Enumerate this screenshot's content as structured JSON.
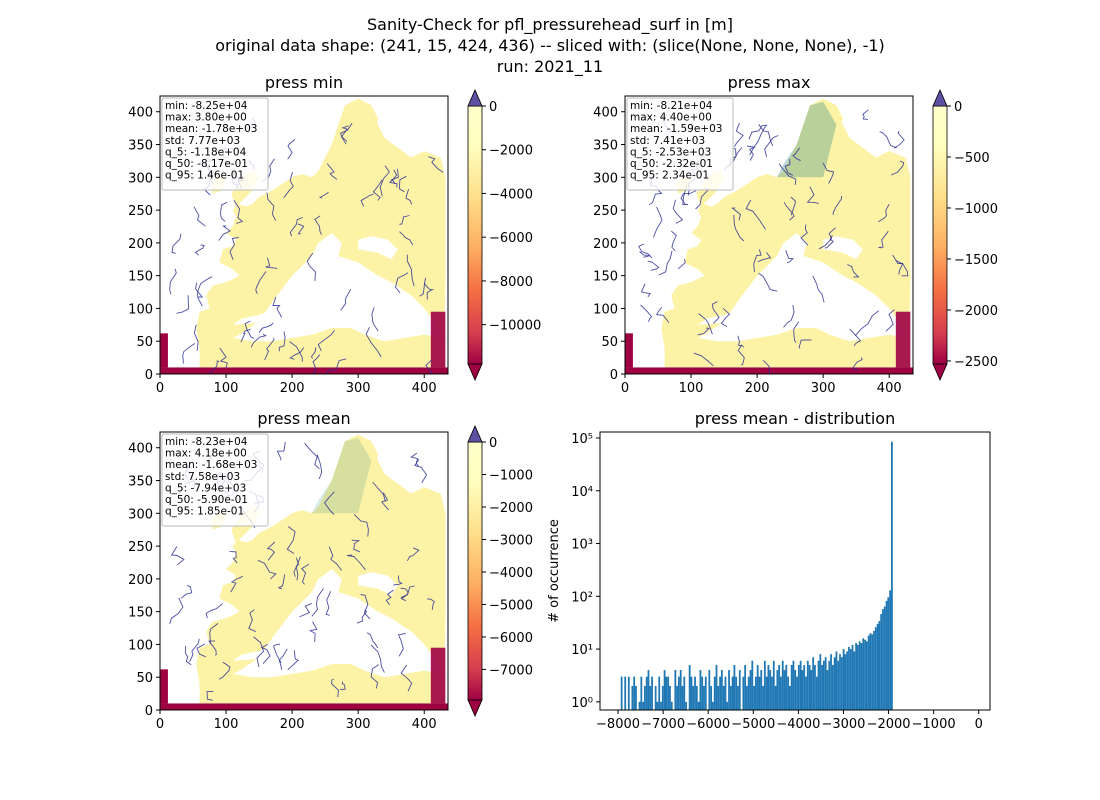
{
  "figure": {
    "title_lines": [
      "Sanity-Check for pfl_pressurehead_surf in [m]",
      "original data shape: (241, 15, 424, 436) -- sliced with: (slice(None, None, None), -1)",
      "run: 2021_11"
    ]
  },
  "colors": {
    "map_fill": "#fdf3a6",
    "map_dry": "#9e0142",
    "river": "#2b2f94",
    "forest_tone": "#3a8f86",
    "histogram_bar": "#1f77b4",
    "over_color": "#5e4fa2"
  },
  "chart_data": [
    {
      "type": "heatmap",
      "title": "press min",
      "xlim": [
        0,
        436
      ],
      "ylim": [
        0,
        424
      ],
      "x_ticks": [
        "0",
        "100",
        "200",
        "300",
        "400"
      ],
      "y_ticks": [
        "0",
        "50",
        "100",
        "150",
        "200",
        "250",
        "300",
        "350",
        "400"
      ],
      "stats": [
        "min: -8.25e+04",
        "max: 3.80e+00",
        "mean: -1.78e+03",
        "std: 7.77e+03",
        "q_5: -1.18e+04",
        "q_50: -8.17e-01",
        "q_95: 1.46e-01"
      ],
      "colorbar": {
        "range": [
          -11800,
          0
        ],
        "ticks": [
          "0",
          "−2000",
          "−4000",
          "−6000",
          "−8000",
          "−10000"
        ],
        "tick_values": [
          0,
          -2000,
          -4000,
          -6000,
          -8000,
          -10000
        ],
        "colormap": "Spectral",
        "extend": "both"
      }
    },
    {
      "type": "heatmap",
      "title": "press max",
      "xlim": [
        0,
        436
      ],
      "ylim": [
        0,
        424
      ],
      "x_ticks": [
        "0",
        "100",
        "200",
        "300",
        "400"
      ],
      "y_ticks": [
        "0",
        "50",
        "100",
        "150",
        "200",
        "250",
        "300",
        "350",
        "400"
      ],
      "stats": [
        "min: -8.21e+04",
        "max: 4.40e+00",
        "mean: -1.59e+03",
        "std: 7.41e+03",
        "q_5: -2.53e+03",
        "q_50: -2.32e-01",
        "q_95: 2.34e-01"
      ],
      "colorbar": {
        "range": [
          -2530,
          0
        ],
        "ticks": [
          "0",
          "−500",
          "−1000",
          "−1500",
          "−2000",
          "−2500"
        ],
        "tick_values": [
          0,
          -500,
          -1000,
          -1500,
          -2000,
          -2500
        ],
        "colormap": "Spectral",
        "extend": "both"
      }
    },
    {
      "type": "heatmap",
      "title": "press mean",
      "xlim": [
        0,
        436
      ],
      "ylim": [
        0,
        424
      ],
      "x_ticks": [
        "0",
        "100",
        "200",
        "300",
        "400"
      ],
      "y_ticks": [
        "0",
        "50",
        "100",
        "150",
        "200",
        "250",
        "300",
        "350",
        "400"
      ],
      "stats": [
        "min: -8.23e+04",
        "max: 4.18e+00",
        "mean: -1.68e+03",
        "std: 7.58e+03",
        "q_5: -7.94e+03",
        "q_50: -5.90e-01",
        "q_95: 1.85e-01"
      ],
      "colorbar": {
        "range": [
          -7940,
          0
        ],
        "ticks": [
          "0",
          "−1000",
          "−2000",
          "−3000",
          "−4000",
          "−5000",
          "−6000",
          "−7000"
        ],
        "tick_values": [
          0,
          -1000,
          -2000,
          -3000,
          -4000,
          -5000,
          -6000,
          -7000
        ],
        "colormap": "Spectral",
        "extend": "both"
      }
    },
    {
      "type": "bar",
      "title": "press mean - distribution",
      "ylabel": "# of occurrence",
      "xlabel": "",
      "xlim": [
        -8400,
        250
      ],
      "ylim": [
        0.7,
        130000
      ],
      "yscale": "log",
      "x_ticks": [
        "−8000",
        "−7000",
        "−6000",
        "−5000",
        "−4000",
        "−3000",
        "−2000",
        "−1000",
        "0"
      ],
      "x_tick_values": [
        -8000,
        -7000,
        -6000,
        -5000,
        -4000,
        -3000,
        -2000,
        -1000,
        0
      ],
      "y_ticks": [
        "10⁰",
        "10¹",
        "10²",
        "10³",
        "10⁴",
        "10⁵"
      ],
      "y_tick_values": [
        1,
        10,
        100,
        1000,
        10000,
        100000
      ],
      "bin_start": -7940,
      "bin_width": 39.7,
      "counts": [
        3,
        0,
        3,
        0,
        3,
        0,
        2,
        3,
        2,
        0,
        1,
        3,
        1,
        2,
        3,
        4,
        2,
        3,
        0,
        2,
        1,
        3,
        1,
        2,
        4,
        3,
        3,
        2,
        1,
        0,
        4,
        2,
        3,
        4,
        2,
        3,
        1,
        0,
        5,
        3,
        2,
        3,
        2,
        1,
        4,
        3,
        2,
        3,
        0,
        4,
        2,
        1,
        3,
        5,
        2,
        3,
        4,
        2,
        3,
        1,
        4,
        2,
        3,
        5,
        3,
        2,
        4,
        0,
        3,
        5,
        2,
        3,
        4,
        6,
        2,
        3,
        5,
        3,
        4,
        2,
        6,
        3,
        5,
        4,
        3,
        6,
        2,
        4,
        5,
        3,
        6,
        4,
        5,
        3,
        2,
        5,
        6,
        4,
        3,
        5,
        6,
        4,
        5,
        3,
        6,
        5,
        4,
        7,
        5,
        3,
        6,
        8,
        5,
        6,
        7,
        4,
        6,
        8,
        5,
        7,
        9,
        6,
        8,
        7,
        10,
        8,
        9,
        11,
        10,
        12,
        9,
        13,
        12,
        14,
        13,
        16,
        15,
        14,
        18,
        20,
        19,
        22,
        26,
        30,
        34,
        46,
        57,
        64,
        82,
        96,
        130,
        85000
      ]
    }
  ]
}
